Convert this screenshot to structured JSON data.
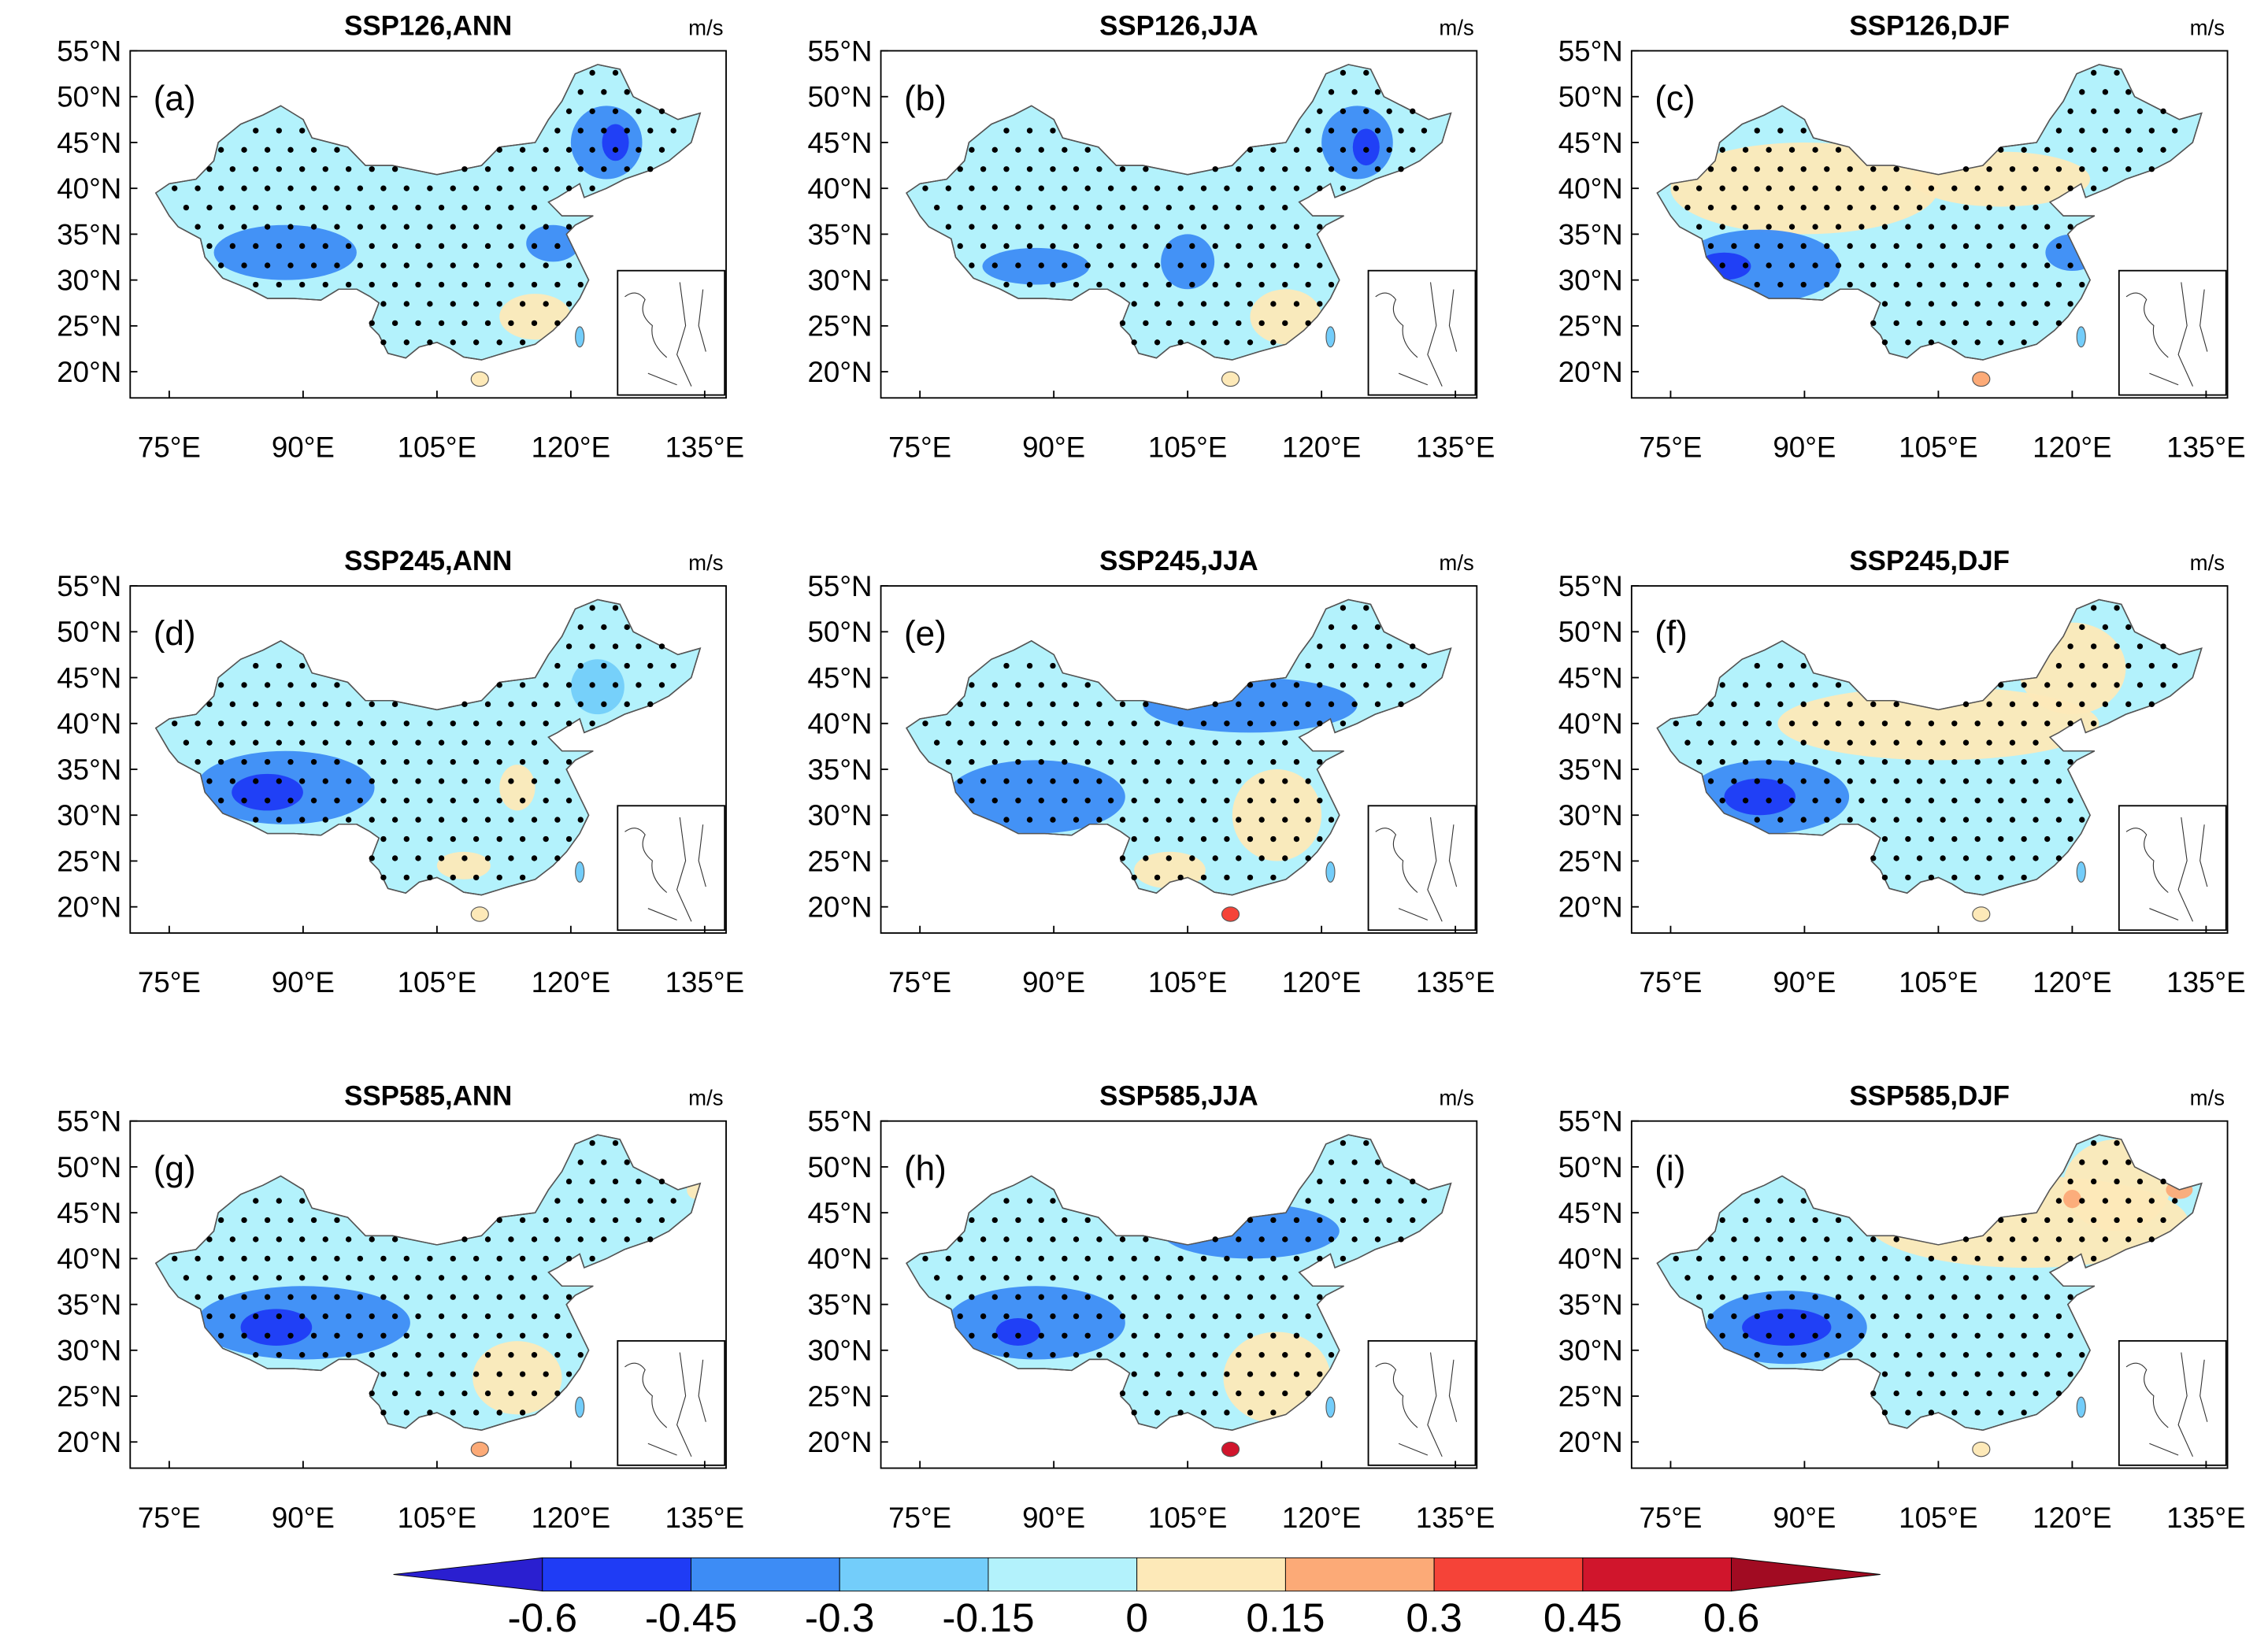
{
  "panels": [
    {
      "title": "SSP126,ANN",
      "unit": "m/s",
      "label": "(a)"
    },
    {
      "title": "SSP126,JJA",
      "unit": "m/s",
      "label": "(b)"
    },
    {
      "title": "SSP126,DJF",
      "unit": "m/s",
      "label": "(c)"
    },
    {
      "title": "SSP245,ANN",
      "unit": "m/s",
      "label": "(d)"
    },
    {
      "title": "SSP245,JJA",
      "unit": "m/s",
      "label": "(e)"
    },
    {
      "title": "SSP245,DJF",
      "unit": "m/s",
      "label": "(f)"
    },
    {
      "title": "SSP585,ANN",
      "unit": "m/s",
      "label": "(g)"
    },
    {
      "title": "SSP585,JJA",
      "unit": "m/s",
      "label": "(h)"
    },
    {
      "title": "SSP585,DJF",
      "unit": "m/s",
      "label": "(i)"
    }
  ],
  "lat_labels": [
    "55°N",
    "50°N",
    "45°N",
    "40°N",
    "35°N",
    "30°N",
    "25°N",
    "20°N"
  ],
  "lon_labels": [
    "75°E",
    "90°E",
    "105°E",
    "120°E",
    "135°E"
  ],
  "colorbar": {
    "levels": [
      -0.6,
      -0.45,
      -0.3,
      -0.15,
      0,
      0.15,
      0.3,
      0.45,
      0.6
    ],
    "colors": [
      "#2a1fd0",
      "#1f3cf5",
      "#3d8cf5",
      "#73cdfa",
      "#b3f2fc",
      "#fde9b8",
      "#fcaa77",
      "#f54338",
      "#d0152c",
      "#a10b22"
    ]
  }
}
